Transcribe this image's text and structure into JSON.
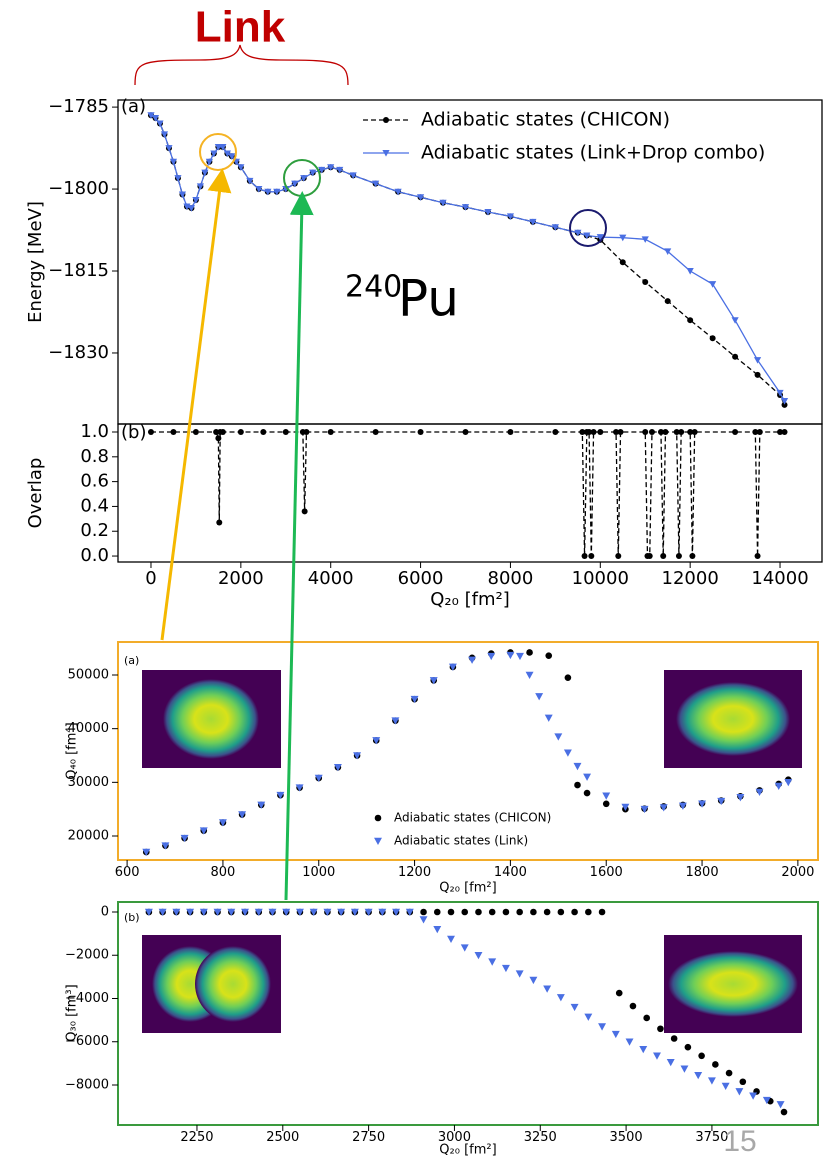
{
  "header": {
    "title": "Link"
  },
  "page_number": 15,
  "chart_data": [
    {
      "type": "line",
      "panel_label": "(a)",
      "ylabel": "Energy [MeV]",
      "xlim": [
        -734,
        14934
      ],
      "ylim": [
        -1843,
        -1783.7
      ],
      "yticks": [
        {
          "value": -1785,
          "label": "−1785"
        },
        {
          "value": -1800,
          "label": "−1800"
        },
        {
          "value": -1815,
          "label": "−1815"
        },
        {
          "value": -1830,
          "label": "−1830"
        }
      ],
      "frame_color": "#000000",
      "legend": "upper right",
      "annotation": {
        "superscript": "240",
        "text": "Pu",
        "color": "#3a78b5"
      },
      "series": [
        {
          "name": "Adiabatic states (CHICON)",
          "color": "#000000",
          "marker": "o",
          "linestyle": "dashed",
          "x": [
            0,
            100,
            200,
            300,
            400,
            500,
            600,
            700,
            800,
            900,
            1000,
            1100,
            1200,
            1300,
            1400,
            1500,
            1600,
            1700,
            1800,
            1900,
            2000,
            2200,
            2400,
            2600,
            2800,
            3000,
            3200,
            3400,
            3600,
            3800,
            4000,
            4200,
            4500,
            5000,
            5500,
            6000,
            6500,
            7000,
            7500,
            8000,
            8500,
            9000,
            9500,
            9700,
            10000,
            10500,
            11000,
            11500,
            12000,
            12500,
            13000,
            13500,
            14000,
            14100
          ],
          "values": [
            -1786.5,
            -1787,
            -1788,
            -1790,
            -1792.5,
            -1795,
            -1798,
            -1801,
            -1803.2,
            -1803.5,
            -1802,
            -1799.5,
            -1797,
            -1795,
            -1793.5,
            -1792.3,
            -1792.3,
            -1793.5,
            -1794,
            -1795,
            -1796,
            -1798.5,
            -1800,
            -1800.5,
            -1800.5,
            -1800,
            -1799,
            -1798,
            -1797,
            -1796.5,
            -1796,
            -1796.5,
            -1797.5,
            -1799,
            -1800.5,
            -1801.5,
            -1802.5,
            -1803.3,
            -1804.2,
            -1805,
            -1806,
            -1807,
            -1808,
            -1808.5,
            -1809.3,
            -1813.4,
            -1817,
            -1820.5,
            -1824,
            -1827.3,
            -1830.7,
            -1834,
            -1837.7,
            -1839.5
          ]
        },
        {
          "name": "Adiabatic states (Link+Drop combo)",
          "color": "#4a6fe3",
          "marker": "v",
          "linestyle": "solid",
          "x": [
            0,
            100,
            200,
            300,
            400,
            500,
            600,
            700,
            800,
            900,
            1000,
            1100,
            1200,
            1300,
            1400,
            1500,
            1600,
            1700,
            1800,
            1900,
            2000,
            2200,
            2400,
            2600,
            2800,
            3000,
            3200,
            3400,
            3600,
            3800,
            4000,
            4200,
            4500,
            5000,
            5500,
            6000,
            6500,
            7000,
            7500,
            8000,
            8500,
            9000,
            9500,
            9700,
            10000,
            10500,
            11000,
            11500,
            12000,
            12500,
            13000,
            13500,
            14000,
            14100
          ],
          "values": [
            -1786.5,
            -1787,
            -1788,
            -1790,
            -1792.5,
            -1795,
            -1798,
            -1801,
            -1803.2,
            -1803.5,
            -1802,
            -1799.5,
            -1797,
            -1795,
            -1793.5,
            -1792.3,
            -1792.3,
            -1793.5,
            -1794,
            -1795,
            -1796,
            -1798.5,
            -1800,
            -1800.5,
            -1800.5,
            -1800,
            -1799,
            -1798,
            -1797,
            -1796.5,
            -1796,
            -1796.5,
            -1797.5,
            -1799,
            -1800.5,
            -1801.5,
            -1802.5,
            -1803.3,
            -1804.2,
            -1805,
            -1806,
            -1807,
            -1808,
            -1808.5,
            -1808.8,
            -1808.9,
            -1809.2,
            -1811.4,
            -1815,
            -1817.4,
            -1824,
            -1831.3,
            -1837.3,
            -1838.8
          ]
        }
      ]
    },
    {
      "type": "line",
      "panel_label": "(b)",
      "ylabel": "Overlap",
      "xlabel": "Q₂₀ [fm²]",
      "xlim": [
        -734,
        14934
      ],
      "ylim": [
        -0.048,
        1.0645
      ],
      "xticks": [
        0,
        2000,
        4000,
        6000,
        8000,
        10000,
        12000,
        14000
      ],
      "yticks": [
        {
          "value": 0,
          "label": "0.0"
        },
        {
          "value": 0.2,
          "label": "0.2"
        },
        {
          "value": 0.4,
          "label": "0.4"
        },
        {
          "value": 0.6,
          "label": "0.6"
        },
        {
          "value": 0.8,
          "label": "0.8"
        },
        {
          "value": 1,
          "label": "1.0"
        }
      ],
      "frame_color": "#000000",
      "series": [
        {
          "color": "#000000",
          "marker": "o",
          "linestyle": "dashed",
          "x": [
            0,
            500,
            1000,
            1450,
            1500,
            1520,
            1540,
            1600,
            2000,
            2500,
            3000,
            3380,
            3420,
            3460,
            4000,
            5000,
            6000,
            7000,
            8000,
            9000,
            9600,
            9650,
            9700,
            9750,
            9800,
            9850,
            10000,
            10350,
            10400,
            10450,
            11000,
            11050,
            11100,
            11150,
            11350,
            11400,
            11450,
            11700,
            11750,
            11800,
            12000,
            12050,
            12100,
            13000,
            13450,
            13500,
            13550,
            14000,
            14100
          ],
          "values": [
            1,
            1,
            1,
            1,
            0.95,
            0.27,
            1,
            1,
            1,
            1,
            1,
            1,
            0.36,
            1,
            1,
            1,
            1,
            1,
            1,
            1,
            1,
            0,
            1,
            1,
            0,
            1,
            1,
            1,
            0,
            1,
            1,
            0,
            0,
            1,
            1,
            0,
            1,
            1,
            0,
            1,
            1,
            0,
            1,
            1,
            1,
            0,
            1,
            1,
            1
          ]
        }
      ]
    },
    {
      "type": "scatter",
      "panel_label": "(a)",
      "ylabel": "Q₄₀ [fm⁴]",
      "xlabel": "Q₂₀ [fm²]",
      "xlim": [
        581,
        2042
      ],
      "ylim": [
        15528,
        56149
      ],
      "xticks": [
        600,
        800,
        1000,
        1200,
        1400,
        1600,
        1800,
        2000
      ],
      "yticks": [
        20000,
        30000,
        40000,
        50000
      ],
      "frame_color": "#f2ac2a",
      "legend": "lower center",
      "series": [
        {
          "name": "Adiabatic states (CHICON)",
          "color": "#000000",
          "marker": "o",
          "linestyle": "none",
          "x": [
            640,
            680,
            720,
            760,
            800,
            840,
            880,
            920,
            960,
            1000,
            1040,
            1080,
            1120,
            1160,
            1200,
            1240,
            1280,
            1320,
            1360,
            1400,
            1440,
            1480,
            1520,
            1540,
            1560,
            1600,
            1640,
            1680,
            1720,
            1760,
            1800,
            1840,
            1880,
            1920,
            1960,
            1980
          ],
          "values": [
            17000,
            18200,
            19600,
            21000,
            22500,
            24000,
            25800,
            27600,
            29000,
            30800,
            32800,
            35000,
            37800,
            41500,
            45500,
            49000,
            51500,
            53200,
            54000,
            54200,
            54200,
            53600,
            49500,
            29500,
            28000,
            26000,
            25000,
            25100,
            25500,
            25800,
            26100,
            26600,
            27400,
            28500,
            29700,
            30500
          ]
        },
        {
          "name": "Adiabatic states (Link)",
          "color": "#4a6fe3",
          "marker": "v",
          "linestyle": "none",
          "x": [
            640,
            680,
            720,
            760,
            800,
            840,
            880,
            920,
            960,
            1000,
            1040,
            1080,
            1120,
            1160,
            1200,
            1240,
            1280,
            1320,
            1360,
            1400,
            1420,
            1440,
            1460,
            1480,
            1500,
            1520,
            1540,
            1560,
            1600,
            1640,
            1680,
            1720,
            1760,
            1800,
            1840,
            1880,
            1920,
            1960,
            1980
          ],
          "values": [
            17000,
            18200,
            19600,
            21000,
            22500,
            24000,
            25800,
            27600,
            29000,
            30800,
            32800,
            35000,
            37800,
            41500,
            45500,
            49000,
            51500,
            52800,
            53500,
            53700,
            53500,
            50000,
            46000,
            42000,
            38500,
            35500,
            33000,
            31000,
            27500,
            25400,
            25000,
            25300,
            25600,
            26000,
            26500,
            27200,
            28200,
            29300,
            30000
          ]
        }
      ]
    },
    {
      "type": "scatter",
      "panel_label": "(b)",
      "ylabel": "Q₃₀ [fm³]",
      "xlabel": "Q₂₀ [fm²]",
      "xlim": [
        2020,
        4059
      ],
      "ylim": [
        -9850,
        462
      ],
      "xticks": [
        2250,
        2500,
        2750,
        3000,
        3250,
        3500,
        3750
      ],
      "yticks": [
        0,
        {
          "value": -2000,
          "label": "−2000"
        },
        {
          "value": -4000,
          "label": "−4000"
        },
        {
          "value": -6000,
          "label": "−6000"
        },
        {
          "value": -8000,
          "label": "−8000"
        }
      ],
      "frame_color": "#3a9a3e",
      "series": [
        {
          "color": "#000000",
          "marker": "o",
          "linestyle": "none",
          "x": [
            2110,
            2150,
            2190,
            2230,
            2270,
            2310,
            2350,
            2390,
            2430,
            2470,
            2510,
            2550,
            2590,
            2630,
            2670,
            2710,
            2750,
            2790,
            2830,
            2870,
            2910,
            2950,
            2990,
            3030,
            3070,
            3110,
            3150,
            3190,
            3230,
            3270,
            3310,
            3350,
            3390,
            3430,
            3480,
            3520,
            3560,
            3600,
            3640,
            3680,
            3720,
            3760,
            3800,
            3840,
            3880,
            3920,
            3960
          ],
          "values": [
            0,
            0,
            0,
            0,
            0,
            0,
            0,
            0,
            0,
            0,
            0,
            0,
            0,
            0,
            0,
            0,
            0,
            0,
            0,
            0,
            0,
            0,
            0,
            0,
            0,
            0,
            0,
            0,
            0,
            0,
            0,
            0,
            0,
            0,
            -3750,
            -4350,
            -4900,
            -5400,
            -5850,
            -6250,
            -6650,
            -7050,
            -7450,
            -7850,
            -8300,
            -8750,
            -9250
          ]
        },
        {
          "color": "#4a6fe3",
          "marker": "v",
          "linestyle": "none",
          "x": [
            2110,
            2150,
            2190,
            2230,
            2270,
            2310,
            2350,
            2390,
            2430,
            2470,
            2510,
            2550,
            2590,
            2630,
            2670,
            2710,
            2750,
            2790,
            2830,
            2870,
            2910,
            2950,
            2990,
            3030,
            3070,
            3110,
            3150,
            3190,
            3230,
            3270,
            3310,
            3350,
            3390,
            3430,
            3470,
            3510,
            3550,
            3590,
            3630,
            3670,
            3710,
            3750,
            3790,
            3830,
            3870,
            3910,
            3950
          ],
          "values": [
            0,
            0,
            0,
            0,
            0,
            0,
            0,
            0,
            0,
            0,
            0,
            0,
            0,
            0,
            0,
            0,
            0,
            0,
            0,
            0,
            -350,
            -800,
            -1250,
            -1650,
            -2000,
            -2300,
            -2600,
            -2850,
            -3150,
            -3550,
            -3950,
            -4400,
            -4850,
            -5300,
            -5650,
            -6000,
            -6350,
            -6650,
            -6950,
            -7250,
            -7550,
            -7800,
            -8050,
            -8300,
            -8500,
            -8700,
            -8900
          ]
        }
      ]
    }
  ]
}
